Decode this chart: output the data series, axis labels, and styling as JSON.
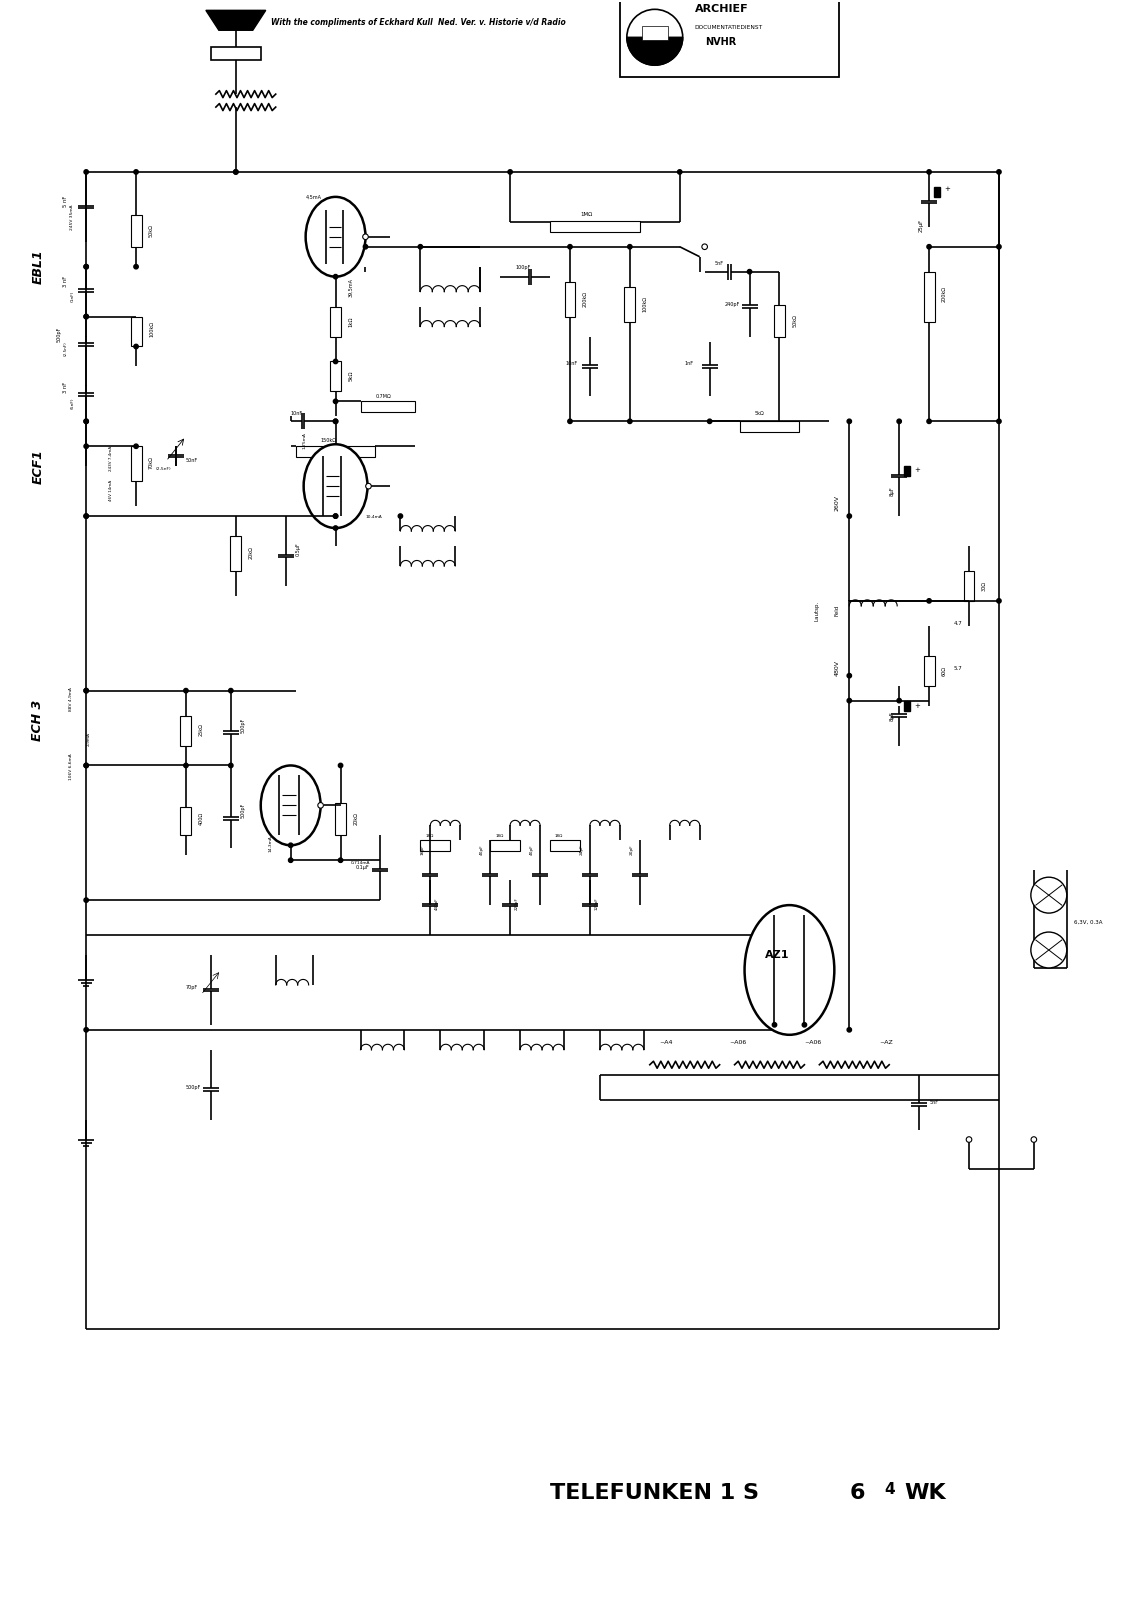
{
  "title_text": "TELEFUNKEN 1 S",
  "title_num1": "6",
  "title_num2": "4",
  "title_wk": "WK",
  "top_credit": "With the compliments of Eckhard Kull  Ned. Ver. v. Historie v/d Radio",
  "archief_lines": [
    "ARCHIEF",
    "DOCUMENTATIEDIENST",
    "NVHR"
  ],
  "label_EBL1": "EBL1",
  "label_ECF1": "ECF1",
  "label_ECH3": "ECH 3",
  "label_AZ1": "AZ1",
  "bg_color": "#ffffff",
  "lw_main": 1.2,
  "lw_thin": 0.8,
  "fig_width": 11.3,
  "fig_height": 16.0,
  "dpi": 100
}
